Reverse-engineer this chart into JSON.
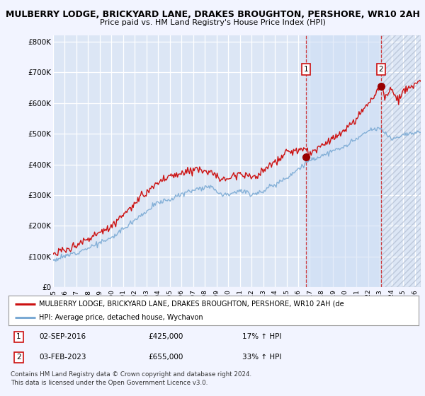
{
  "title": "MULBERRY LODGE, BRICKYARD LANE, DRAKES BROUGHTON, PERSHORE, WR10 2AH",
  "subtitle": "Price paid vs. HM Land Registry's House Price Index (HPI)",
  "ylabel_ticks": [
    "£0",
    "£100K",
    "£200K",
    "£300K",
    "£400K",
    "£500K",
    "£600K",
    "£700K",
    "£800K"
  ],
  "ytick_values": [
    0,
    100000,
    200000,
    300000,
    400000,
    500000,
    600000,
    700000,
    800000
  ],
  "ylim": [
    0,
    820000
  ],
  "xlim_start": 1995.0,
  "xlim_end": 2026.5,
  "background_color": "#f2f4ff",
  "plot_bg_color": "#dce6f5",
  "grid_color": "#ffffff",
  "hpi_color": "#7baad4",
  "price_color": "#cc1111",
  "sale1_x": 2016.67,
  "sale1_y": 425000,
  "sale2_x": 2023.08,
  "sale2_y": 655000,
  "legend_label_price": "MULBERRY LODGE, BRICKYARD LANE, DRAKES BROUGHTON, PERSHORE, WR10 2AH (de",
  "legend_label_hpi": "HPI: Average price, detached house, Wychavon",
  "annotation1_date": "02-SEP-2016",
  "annotation1_price": "£425,000",
  "annotation1_hpi": "17% ↑ HPI",
  "annotation2_date": "03-FEB-2023",
  "annotation2_price": "£655,000",
  "annotation2_hpi": "33% ↑ HPI",
  "footer": "Contains HM Land Registry data © Crown copyright and database right 2024.\nThis data is licensed under the Open Government Licence v3.0.",
  "x_years": [
    1995,
    1996,
    1997,
    1998,
    1999,
    2000,
    2001,
    2002,
    2003,
    2004,
    2005,
    2006,
    2007,
    2008,
    2009,
    2010,
    2011,
    2012,
    2013,
    2014,
    2015,
    2016,
    2017,
    2018,
    2019,
    2020,
    2021,
    2022,
    2023,
    2024,
    2025,
    2026
  ],
  "highlight_shade_color": "#ccddf5",
  "hatch_color": "#c0c8e0"
}
